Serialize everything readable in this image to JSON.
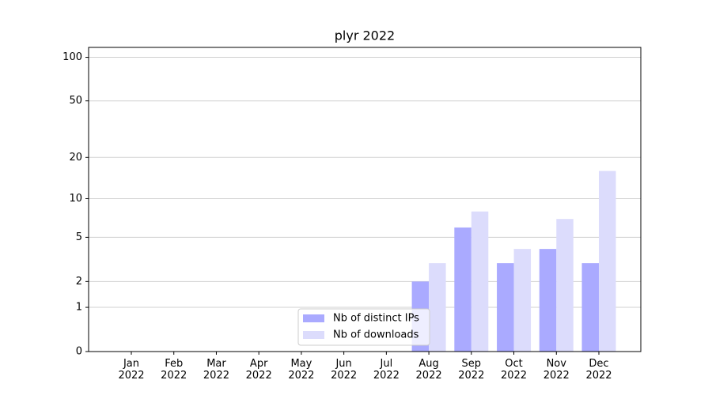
{
  "chart_data": {
    "type": "bar",
    "title": "plyr 2022",
    "categories": [
      "Jan\n2022",
      "Feb\n2022",
      "Mar\n2022",
      "Apr\n2022",
      "May\n2022",
      "Jun\n2022",
      "Jul\n2022",
      "Aug\n2022",
      "Sep\n2022",
      "Oct\n2022",
      "Nov\n2022",
      "Dec\n2022"
    ],
    "series": [
      {
        "name": "Nb of distinct IPs",
        "color": "#aaaaff",
        "values": [
          0,
          0,
          0,
          0,
          0,
          0,
          0,
          2,
          6,
          3,
          4,
          3
        ]
      },
      {
        "name": "Nb of downloads",
        "color": "#dcdcfc",
        "values": [
          0,
          0,
          0,
          0,
          0,
          0,
          0,
          3,
          8,
          4,
          7,
          16
        ]
      }
    ],
    "yscale": "log1p",
    "ylim": [
      0,
      117
    ],
    "yticks": [
      0,
      1,
      2,
      5,
      10,
      20,
      50,
      100
    ],
    "grid": true,
    "legend": "lower center"
  }
}
